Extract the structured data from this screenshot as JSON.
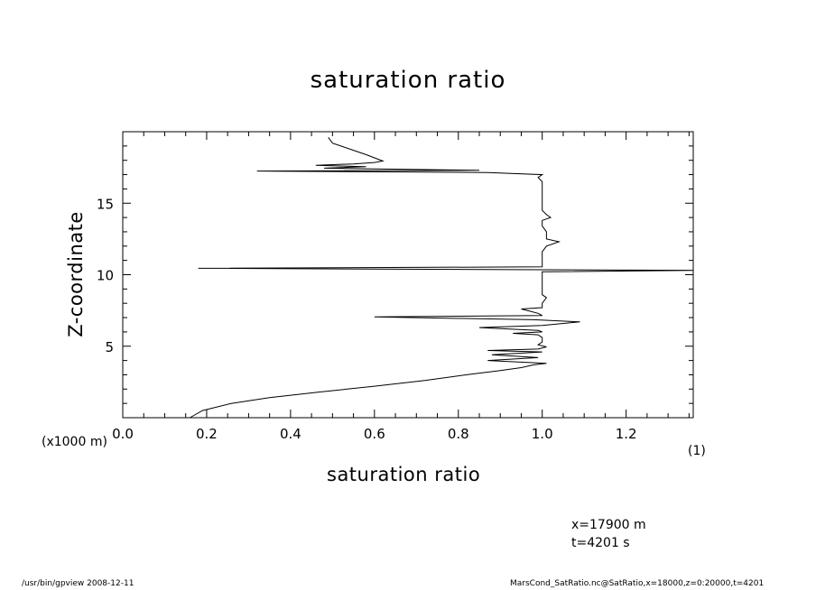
{
  "chart_data": {
    "type": "line",
    "title": "saturation ratio",
    "xlabel": "saturation ratio",
    "ylabel": "Z-coordinate",
    "y_unit_label": "(x1000 m)",
    "x_unit_label": "(1)",
    "xlim": [
      0,
      1.36
    ],
    "ylim": [
      0,
      20
    ],
    "xticks": [
      0.0,
      0.2,
      0.4,
      0.6,
      0.8,
      1.0,
      1.2
    ],
    "xtick_labels": [
      "0.0",
      "0.2",
      "0.4",
      "0.6",
      "0.8",
      "1.0",
      "1.2"
    ],
    "yticks": [
      5,
      10,
      15
    ],
    "ytick_labels": [
      "5",
      "10",
      "15"
    ],
    "grid": false,
    "series": [
      {
        "points": [
          [
            0.16,
            0.0
          ],
          [
            0.19,
            0.5
          ],
          [
            0.26,
            1.0
          ],
          [
            0.35,
            1.4
          ],
          [
            0.47,
            1.8
          ],
          [
            0.6,
            2.2
          ],
          [
            0.72,
            2.6
          ],
          [
            0.82,
            3.0
          ],
          [
            0.9,
            3.3
          ],
          [
            0.95,
            3.5
          ],
          [
            0.98,
            3.7
          ],
          [
            1.01,
            3.8
          ],
          [
            0.87,
            4.0
          ],
          [
            0.99,
            4.2
          ],
          [
            0.88,
            4.4
          ],
          [
            1.0,
            4.6
          ],
          [
            0.87,
            4.7
          ],
          [
            0.99,
            4.8
          ],
          [
            1.01,
            4.95
          ],
          [
            0.99,
            5.1
          ],
          [
            1.0,
            5.3
          ],
          [
            1.0,
            5.6
          ],
          [
            0.99,
            5.8
          ],
          [
            0.93,
            5.9
          ],
          [
            1.0,
            6.0
          ],
          [
            0.99,
            6.1
          ],
          [
            0.85,
            6.3
          ],
          [
            1.0,
            6.45
          ],
          [
            1.09,
            6.7
          ],
          [
            0.98,
            6.85
          ],
          [
            0.6,
            7.05
          ],
          [
            1.0,
            7.15
          ],
          [
            0.99,
            7.3
          ],
          [
            0.97,
            7.45
          ],
          [
            0.95,
            7.6
          ],
          [
            1.0,
            7.7
          ],
          [
            1.0,
            8.0
          ],
          [
            1.01,
            8.4
          ],
          [
            1.0,
            8.6
          ],
          [
            1.0,
            9.0
          ],
          [
            1.0,
            9.5
          ],
          [
            1.0,
            9.8
          ],
          [
            1.0,
            10.2
          ],
          [
            1.36,
            10.3
          ],
          [
            0.18,
            10.45
          ],
          [
            1.0,
            10.55
          ],
          [
            1.0,
            10.8
          ],
          [
            1.0,
            11.2
          ],
          [
            1.0,
            11.6
          ],
          [
            1.01,
            12.0
          ],
          [
            1.04,
            12.3
          ],
          [
            1.01,
            12.5
          ],
          [
            1.01,
            13.0
          ],
          [
            1.0,
            13.4
          ],
          [
            1.0,
            13.8
          ],
          [
            1.02,
            14.0
          ],
          [
            1.01,
            14.2
          ],
          [
            1.0,
            14.5
          ],
          [
            1.0,
            15.0
          ],
          [
            1.0,
            15.5
          ],
          [
            1.0,
            16.0
          ],
          [
            1.0,
            16.5
          ],
          [
            0.99,
            16.8
          ],
          [
            1.0,
            17.0
          ],
          [
            0.87,
            17.15
          ],
          [
            0.32,
            17.25
          ],
          [
            0.85,
            17.3
          ],
          [
            0.48,
            17.45
          ],
          [
            0.58,
            17.55
          ],
          [
            0.46,
            17.65
          ],
          [
            0.55,
            17.75
          ],
          [
            0.6,
            17.85
          ],
          [
            0.62,
            17.95
          ],
          [
            0.58,
            18.4
          ],
          [
            0.54,
            18.8
          ],
          [
            0.5,
            19.2
          ],
          [
            0.49,
            19.6
          ]
        ]
      }
    ]
  },
  "annotations": {
    "x_info": "x=17900  m",
    "t_info": "t=4201  s"
  },
  "footer": {
    "left": "/usr/bin/gpview   2008-12-11",
    "right": "MarsCond_SatRatio.nc@SatRatio,x=18000,z=0:20000,t=4201"
  }
}
